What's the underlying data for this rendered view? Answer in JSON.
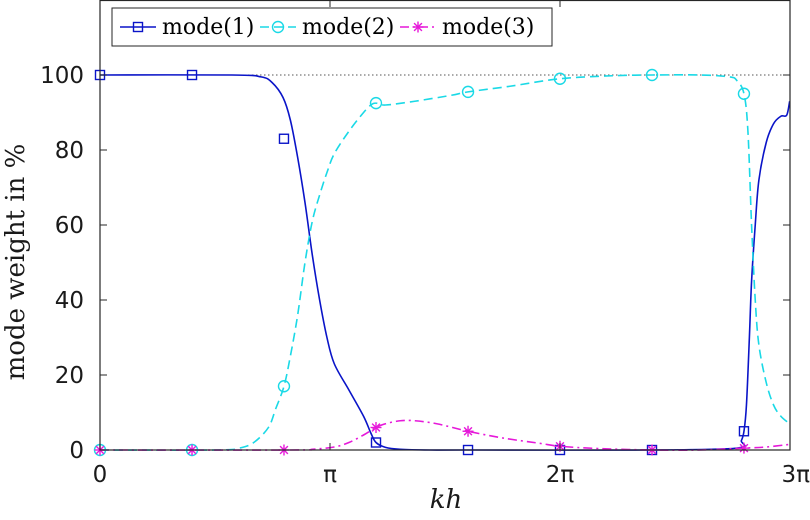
{
  "chart_data": {
    "type": "line",
    "xlabel": "kh",
    "ylabel": "mode weight in %",
    "xlim": [
      0,
      9.4248
    ],
    "ylim": [
      0,
      100
    ],
    "ylim_display": [
      0,
      120
    ],
    "xticks": [
      {
        "value": 0,
        "label": "0"
      },
      {
        "value": 3.1416,
        "label": "π"
      },
      {
        "value": 6.2832,
        "label": "2π"
      },
      {
        "value": 9.4248,
        "label": "3π"
      }
    ],
    "yticks": [
      {
        "value": 0,
        "label": "0"
      },
      {
        "value": 20,
        "label": "20"
      },
      {
        "value": 40,
        "label": "40"
      },
      {
        "value": 60,
        "label": "60"
      },
      {
        "value": 80,
        "label": "80"
      },
      {
        "value": 100,
        "label": "100"
      }
    ],
    "reference_line": {
      "y": 100,
      "style": "dotted",
      "color": "#555555"
    },
    "legend": {
      "placement": "top-left"
    },
    "series": [
      {
        "name": "mode(1)",
        "color": "#0a14c8",
        "dash": "solid",
        "marker": "square",
        "markers_x": [
          0,
          1.257,
          2.513,
          3.77,
          5.027,
          6.283,
          7.54,
          8.796
        ],
        "markers_y": [
          100,
          100,
          83,
          2,
          0,
          0,
          0,
          5
        ],
        "curve_x": [
          0,
          1.8,
          2.2,
          2.35,
          2.5,
          2.6,
          2.7,
          2.8,
          2.9,
          3.0,
          3.1,
          3.2,
          3.4,
          3.6,
          3.7,
          3.77,
          3.9,
          4.1,
          4.5,
          5.0,
          7.5,
          8.7,
          8.76,
          8.796,
          8.83,
          8.87,
          8.9,
          8.95,
          9.0,
          9.1,
          9.2,
          9.3,
          9.38,
          9.42
        ],
        "curve_y": [
          100,
          100,
          99.5,
          98,
          94,
          88,
          78,
          66,
          52,
          40,
          30,
          23,
          16,
          9,
          4.5,
          2,
          0.7,
          0.2,
          0,
          0,
          0,
          0.5,
          2.5,
          5,
          12,
          30,
          45,
          60,
          72,
          82,
          87,
          89,
          89.3,
          93
        ]
      },
      {
        "name": "mode(2)",
        "color": "#1ad9e6",
        "dash": "dashed",
        "marker": "circle",
        "markers_x": [
          0,
          1.257,
          2.513,
          3.77,
          5.027,
          6.283,
          7.54,
          8.796
        ],
        "markers_y": [
          0,
          0,
          17,
          92.5,
          95.5,
          99,
          100,
          95
        ],
        "curve_x": [
          0,
          1.6,
          1.9,
          2.1,
          2.3,
          2.4,
          2.513,
          2.6,
          2.7,
          2.8,
          2.9,
          3.0,
          3.1,
          3.2,
          3.4,
          3.6,
          3.7,
          3.77,
          3.9,
          4.3,
          4.8,
          5.027,
          5.6,
          6.283,
          7.0,
          7.54,
          8.2,
          8.6,
          8.7,
          8.796,
          8.85,
          8.9,
          8.95,
          9.0,
          9.1,
          9.2,
          9.3,
          9.42
        ],
        "curve_y": [
          0,
          0,
          0.5,
          2,
          6,
          11,
          17,
          25,
          36,
          50,
          61,
          68,
          74,
          79,
          85,
          90,
          92,
          92.5,
          92,
          93,
          94.6,
          95.5,
          97,
          99,
          99.8,
          100,
          100,
          99.5,
          98.5,
          95,
          85,
          60,
          40,
          28,
          18,
          12,
          9,
          7
        ]
      },
      {
        "name": "mode(3)",
        "color": "#e619d9",
        "dash": "dashdot",
        "marker": "asterisk",
        "markers_x": [
          0,
          1.257,
          2.513,
          3.77,
          5.027,
          6.283,
          7.54,
          8.796
        ],
        "markers_y": [
          0,
          0,
          0,
          6,
          5,
          1,
          0,
          0.5
        ],
        "curve_x": [
          0,
          2.6,
          2.9,
          3.2,
          3.4,
          3.6,
          3.77,
          3.9,
          4.1,
          4.3,
          4.6,
          5.027,
          5.5,
          6.0,
          6.283,
          6.8,
          7.54,
          8.2,
          8.796,
          9.1,
          9.42
        ],
        "curve_y": [
          0,
          0,
          0.2,
          0.8,
          2,
          4,
          6,
          7,
          7.8,
          7.8,
          7,
          5,
          3.2,
          1.8,
          1,
          0.4,
          0,
          0,
          0.5,
          0.8,
          1.5
        ]
      }
    ]
  }
}
